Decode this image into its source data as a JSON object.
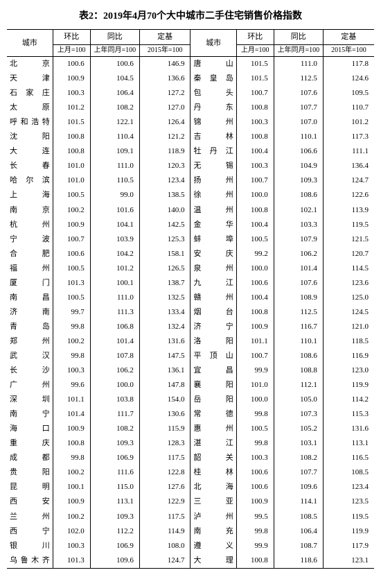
{
  "title": "表2：2019年4月70个大中城市二手住宅销售价格指数",
  "headers": {
    "city": "城市",
    "mom": "环比",
    "yoy": "同比",
    "base": "定基",
    "mom_sub": "上月=100",
    "yoy_sub": "上年同月=100",
    "base_sub": "2015年=100"
  },
  "style": {
    "background_color": "#ffffff",
    "text_color": "#000000",
    "border_color": "#000000",
    "title_fontsize": 14,
    "body_fontsize": 11,
    "font_family": "SimSun"
  },
  "left": [
    {
      "c": "北　　京",
      "m": "100.6",
      "y": "100.6",
      "b": "146.9"
    },
    {
      "c": "天　　津",
      "m": "100.9",
      "y": "104.5",
      "b": "136.6"
    },
    {
      "c": "石 家 庄",
      "m": "100.3",
      "y": "106.4",
      "b": "127.2"
    },
    {
      "c": "太　　原",
      "m": "101.2",
      "y": "108.2",
      "b": "127.0"
    },
    {
      "c": "呼和浩特",
      "m": "101.5",
      "y": "122.1",
      "b": "126.4"
    },
    {
      "c": "沈　　阳",
      "m": "100.8",
      "y": "110.4",
      "b": "121.2"
    },
    {
      "c": "大　　连",
      "m": "100.8",
      "y": "109.1",
      "b": "118.9"
    },
    {
      "c": "长　　春",
      "m": "101.0",
      "y": "111.0",
      "b": "120.3"
    },
    {
      "c": "哈 尔 滨",
      "m": "101.0",
      "y": "110.5",
      "b": "123.4"
    },
    {
      "c": "上　　海",
      "m": "100.5",
      "y": "99.0",
      "b": "138.5"
    },
    {
      "c": "南　　京",
      "m": "100.2",
      "y": "101.6",
      "b": "140.0"
    },
    {
      "c": "杭　　州",
      "m": "100.9",
      "y": "104.1",
      "b": "142.5"
    },
    {
      "c": "宁　　波",
      "m": "100.7",
      "y": "103.9",
      "b": "125.3"
    },
    {
      "c": "合　　肥",
      "m": "100.6",
      "y": "104.2",
      "b": "158.1"
    },
    {
      "c": "福　　州",
      "m": "100.5",
      "y": "101.2",
      "b": "126.5"
    },
    {
      "c": "厦　　门",
      "m": "101.3",
      "y": "100.1",
      "b": "138.7"
    },
    {
      "c": "南　　昌",
      "m": "100.5",
      "y": "111.0",
      "b": "132.5"
    },
    {
      "c": "济　　南",
      "m": "99.7",
      "y": "111.3",
      "b": "133.4"
    },
    {
      "c": "青　　岛",
      "m": "99.8",
      "y": "106.8",
      "b": "132.4"
    },
    {
      "c": "郑　　州",
      "m": "100.2",
      "y": "101.4",
      "b": "131.6"
    },
    {
      "c": "武　　汉",
      "m": "99.8",
      "y": "107.8",
      "b": "147.5"
    },
    {
      "c": "长　　沙",
      "m": "100.3",
      "y": "106.2",
      "b": "136.1"
    },
    {
      "c": "广　　州",
      "m": "99.6",
      "y": "100.0",
      "b": "147.8"
    },
    {
      "c": "深　　圳",
      "m": "101.1",
      "y": "103.8",
      "b": "154.0"
    },
    {
      "c": "南　　宁",
      "m": "101.4",
      "y": "111.7",
      "b": "130.6"
    },
    {
      "c": "海　　口",
      "m": "100.9",
      "y": "108.2",
      "b": "115.9"
    },
    {
      "c": "重　　庆",
      "m": "100.8",
      "y": "109.3",
      "b": "128.3"
    },
    {
      "c": "成　　都",
      "m": "99.8",
      "y": "106.9",
      "b": "117.5"
    },
    {
      "c": "贵　　阳",
      "m": "100.2",
      "y": "111.6",
      "b": "122.8"
    },
    {
      "c": "昆　　明",
      "m": "100.1",
      "y": "115.0",
      "b": "127.6"
    },
    {
      "c": "西　　安",
      "m": "100.9",
      "y": "113.1",
      "b": "122.9"
    },
    {
      "c": "兰　　州",
      "m": "100.2",
      "y": "109.3",
      "b": "117.5"
    },
    {
      "c": "西　　宁",
      "m": "102.0",
      "y": "112.2",
      "b": "114.9"
    },
    {
      "c": "银　　川",
      "m": "100.3",
      "y": "106.9",
      "b": "108.0"
    },
    {
      "c": "乌鲁木齐",
      "m": "101.3",
      "y": "109.6",
      "b": "124.7"
    }
  ],
  "right": [
    {
      "c": "唐　　山",
      "m": "101.5",
      "y": "111.0",
      "b": "117.8"
    },
    {
      "c": "秦 皇 岛",
      "m": "101.5",
      "y": "112.5",
      "b": "124.6"
    },
    {
      "c": "包　　头",
      "m": "100.7",
      "y": "107.6",
      "b": "109.5"
    },
    {
      "c": "丹　　东",
      "m": "100.8",
      "y": "107.7",
      "b": "110.7"
    },
    {
      "c": "锦　　州",
      "m": "100.3",
      "y": "107.0",
      "b": "101.2"
    },
    {
      "c": "吉　　林",
      "m": "100.8",
      "y": "110.1",
      "b": "117.3"
    },
    {
      "c": "牡 丹 江",
      "m": "100.4",
      "y": "106.6",
      "b": "111.1"
    },
    {
      "c": "无　　锡",
      "m": "100.3",
      "y": "104.9",
      "b": "136.4"
    },
    {
      "c": "扬　　州",
      "m": "100.7",
      "y": "109.3",
      "b": "124.7"
    },
    {
      "c": "徐　　州",
      "m": "100.0",
      "y": "108.6",
      "b": "122.6"
    },
    {
      "c": "温　　州",
      "m": "100.8",
      "y": "102.1",
      "b": "113.9"
    },
    {
      "c": "金　　华",
      "m": "100.4",
      "y": "103.3",
      "b": "119.5"
    },
    {
      "c": "蚌　　埠",
      "m": "100.5",
      "y": "107.9",
      "b": "121.5"
    },
    {
      "c": "安　　庆",
      "m": "99.2",
      "y": "106.2",
      "b": "120.7"
    },
    {
      "c": "泉　　州",
      "m": "100.0",
      "y": "101.4",
      "b": "114.5"
    },
    {
      "c": "九　　江",
      "m": "100.6",
      "y": "107.6",
      "b": "123.6"
    },
    {
      "c": "赣　　州",
      "m": "100.4",
      "y": "108.9",
      "b": "125.0"
    },
    {
      "c": "烟　　台",
      "m": "100.8",
      "y": "112.5",
      "b": "124.5"
    },
    {
      "c": "济　　宁",
      "m": "100.9",
      "y": "116.7",
      "b": "121.0"
    },
    {
      "c": "洛　　阳",
      "m": "101.1",
      "y": "110.1",
      "b": "118.5"
    },
    {
      "c": "平 顶 山",
      "m": "100.7",
      "y": "108.6",
      "b": "116.9"
    },
    {
      "c": "宜　　昌",
      "m": "99.9",
      "y": "108.8",
      "b": "123.0"
    },
    {
      "c": "襄　　阳",
      "m": "101.0",
      "y": "112.1",
      "b": "119.9"
    },
    {
      "c": "岳　　阳",
      "m": "100.0",
      "y": "105.0",
      "b": "114.2"
    },
    {
      "c": "常　　德",
      "m": "99.8",
      "y": "107.3",
      "b": "115.3"
    },
    {
      "c": "惠　　州",
      "m": "100.5",
      "y": "105.2",
      "b": "131.6"
    },
    {
      "c": "湛　　江",
      "m": "99.8",
      "y": "103.1",
      "b": "113.1"
    },
    {
      "c": "韶　　关",
      "m": "100.3",
      "y": "108.2",
      "b": "116.5"
    },
    {
      "c": "桂　　林",
      "m": "100.6",
      "y": "107.7",
      "b": "108.5"
    },
    {
      "c": "北　　海",
      "m": "100.6",
      "y": "109.6",
      "b": "123.4"
    },
    {
      "c": "三　　亚",
      "m": "100.9",
      "y": "114.1",
      "b": "123.5"
    },
    {
      "c": "泸　　州",
      "m": "99.5",
      "y": "108.5",
      "b": "119.5"
    },
    {
      "c": "南　　充",
      "m": "99.8",
      "y": "106.4",
      "b": "119.9"
    },
    {
      "c": "遵　　义",
      "m": "99.9",
      "y": "108.7",
      "b": "117.9"
    },
    {
      "c": "大　　理",
      "m": "100.8",
      "y": "118.6",
      "b": "123.1"
    }
  ]
}
